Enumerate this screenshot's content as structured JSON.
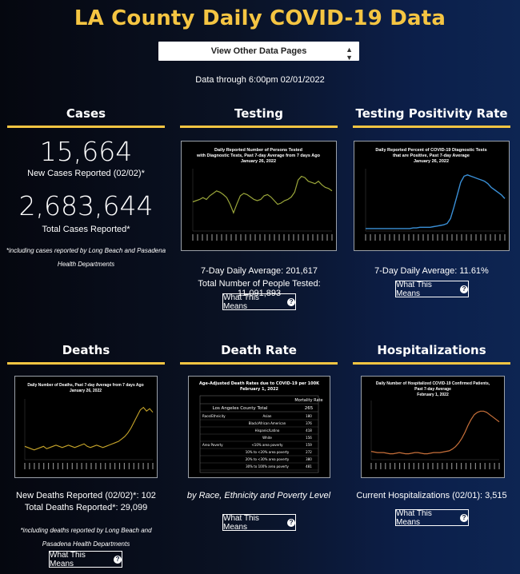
{
  "page": {
    "title": "LA County Daily COVID-19 Data",
    "select_label": "View Other Data Pages",
    "data_through": "Data through 6:00pm 02/01/2022",
    "more_button_label": "What This Means"
  },
  "sections": {
    "cases": {
      "heading": "Cases",
      "new_cases_value": "15,664",
      "new_cases_label": "New Cases Reported (02/02)*",
      "total_cases_value": "2,683,644",
      "total_cases_label": "Total Cases Reported*",
      "footnote_line1": "*including cases reported by Long Beach and Pasadena",
      "footnote_line2": "Health Departments"
    },
    "testing": {
      "heading": "Testing",
      "chart_title_line1": "Daily Reported Number of Persons Tested",
      "chart_title_line2": "with Diagnostic Tests, Past 7-day Average from 7 days Ago",
      "chart_title_line3": "January 26, 2022",
      "stat1": "7-Day Daily Average: 201,617",
      "stat2": "Total Number of People Tested: 11,091,893"
    },
    "positivity": {
      "heading": "Testing Positivity Rate",
      "chart_title_line1": "Daily Reported Percent of COVID-19 Diagnostic Tests",
      "chart_title_line2": "that are Positive, Past 7-day Average",
      "chart_title_line3": "January 26, 2022",
      "stat1": "7-Day Daily Average: 11.61%"
    },
    "deaths": {
      "heading": "Deaths",
      "chart_title_line1": "Daily Number of Deaths, Past 7-day Average from 7 days Ago",
      "chart_title_line2": "January 26, 2022",
      "stat1": "New Deaths Reported (02/02)*: 102",
      "stat2": "Total Deaths Reported*: 29,099",
      "footnote_line1": "*including deaths reported by Long Beach and",
      "footnote_line2": "Pasadena Health Departments"
    },
    "death_rate": {
      "heading": "Death Rate",
      "chart_title_line1": "Age-Adjusted Death Rates due to COVID-19 per 100K",
      "chart_title_line2": "February 1, 2022",
      "table_col_header": "Mortality Rate",
      "table_total_label": "Los Angeles County Total",
      "table_total_value": "265",
      "table_rows": [
        {
          "group": "Race/Ethnicity",
          "label": "Asian",
          "value": "180"
        },
        {
          "group": "",
          "label": "Black/African American",
          "value": "376"
        },
        {
          "group": "",
          "label": "Hispanic/Latino",
          "value": "418"
        },
        {
          "group": "",
          "label": "White",
          "value": "156"
        },
        {
          "group": "Area Poverty",
          "label": "<10% area poverty",
          "value": "159"
        },
        {
          "group": "",
          "label": "10% to <20% area poverty",
          "value": "272"
        },
        {
          "group": "",
          "label": "20% to <30% area poverty",
          "value": "380"
        },
        {
          "group": "",
          "label": "30% to 100% area poverty",
          "value": "481"
        }
      ],
      "caption": "by Race, Ethnicity and Poverty Level"
    },
    "hospitalizations": {
      "heading": "Hospitalizations",
      "chart_title_line1": "Daily Number of Hospitalized COVID-19 Confirmed Patients,",
      "chart_title_line2": "Past 7-day Average",
      "chart_title_line3": "February 1, 2022",
      "stat1": "Current Hospitalizations (02/01): 3,515"
    }
  },
  "colors": {
    "title": "#f5c542",
    "rule": "#f5c542",
    "testing_line": "#9aa63a",
    "positivity_line": "#3a8fd6",
    "deaths_line": "#c7a52a",
    "hosp_line": "#c8703a"
  },
  "chart_data": [
    {
      "type": "line",
      "name": "testing",
      "values": [
        48,
        50,
        52,
        55,
        52,
        58,
        62,
        66,
        64,
        60,
        55,
        44,
        30,
        45,
        58,
        62,
        60,
        56,
        52,
        50,
        52,
        58,
        60,
        56,
        50,
        44,
        46,
        50,
        52,
        56,
        64,
        84,
        90,
        88,
        82,
        80,
        78,
        82,
        76,
        72,
        70,
        66
      ]
    },
    {
      "type": "line",
      "name": "positivity",
      "values": [
        4,
        4,
        4,
        4,
        4,
        4,
        4,
        4,
        4,
        4,
        4,
        4,
        4,
        4,
        5,
        5,
        6,
        6,
        6,
        6,
        7,
        8,
        9,
        10,
        12,
        20,
        38,
        58,
        78,
        88,
        90,
        88,
        86,
        84,
        82,
        80,
        76,
        70,
        66,
        62,
        58,
        52
      ]
    },
    {
      "type": "line",
      "name": "deaths",
      "values": [
        22,
        20,
        18,
        16,
        18,
        20,
        22,
        18,
        20,
        22,
        24,
        22,
        20,
        22,
        24,
        22,
        20,
        22,
        24,
        26,
        22,
        20,
        22,
        24,
        22,
        20,
        22,
        24,
        26,
        28,
        30,
        34,
        38,
        44,
        52,
        62,
        72,
        82,
        86,
        80,
        84,
        78
      ]
    },
    {
      "type": "line",
      "name": "hospitalizations",
      "values": [
        14,
        13,
        12,
        12,
        12,
        11,
        10,
        10,
        11,
        12,
        11,
        10,
        10,
        11,
        12,
        12,
        11,
        10,
        10,
        11,
        12,
        12,
        12,
        13,
        14,
        15,
        18,
        22,
        28,
        36,
        46,
        58,
        68,
        76,
        80,
        82,
        82,
        80,
        76,
        72,
        68,
        64
      ]
    }
  ]
}
